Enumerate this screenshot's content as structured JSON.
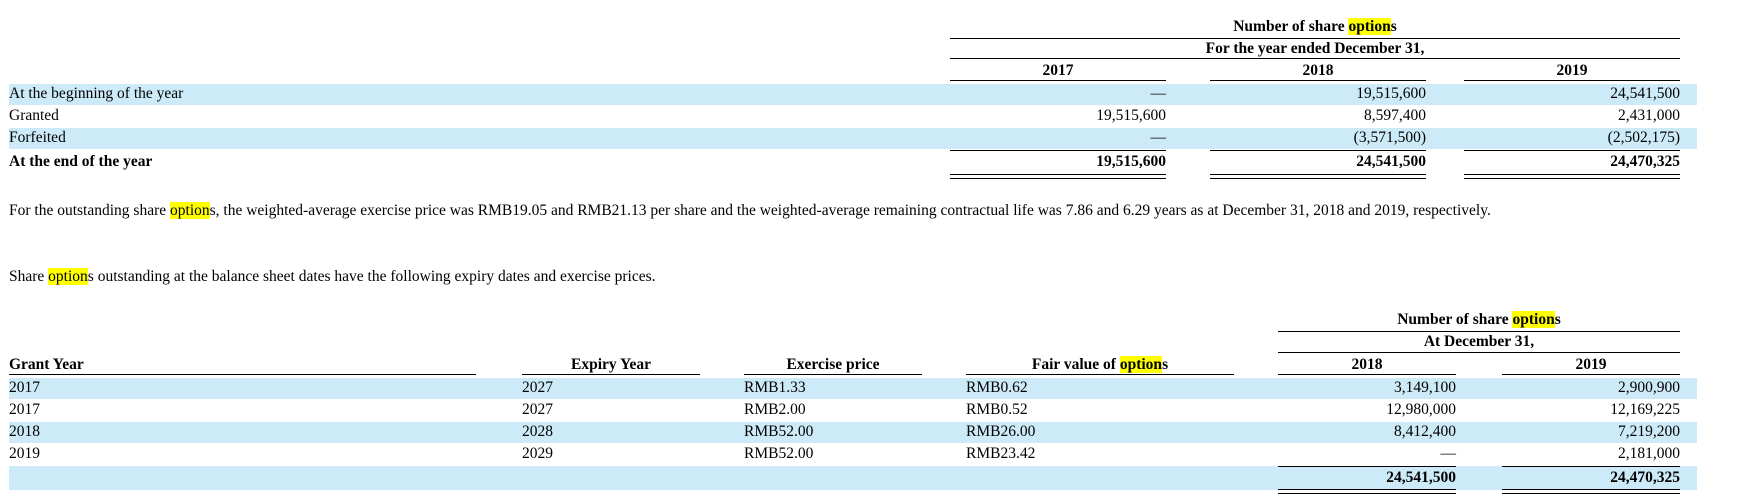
{
  "table1": {
    "title_pre": "Number of share ",
    "title_hl": "option",
    "title_post": "s",
    "subtitle": "For the year ended December 31,",
    "years": [
      "2017",
      "2018",
      "2019"
    ],
    "rows": [
      {
        "label": "At the beginning of the year",
        "values": [
          "—",
          "19,515,600",
          "24,541,500"
        ]
      },
      {
        "label": "Granted",
        "values": [
          "19,515,600",
          "8,597,400",
          "2,431,000"
        ]
      },
      {
        "label": "Forfeited",
        "values": [
          "—",
          "(3,571,500)",
          "(2,502,175)"
        ]
      },
      {
        "label": "At the end of the year",
        "values": [
          "19,515,600",
          "24,541,500",
          "24,470,325"
        ]
      }
    ]
  },
  "paragraph1": {
    "pre": "For the outstanding share ",
    "hl": "option",
    "post": "s, the weighted-average exercise price was RMB19.05 and RMB21.13 per share and the weighted-average remaining contractual life was 7.86 and 6.29 years as at December 31, 2018 and 2019, respectively."
  },
  "paragraph2": {
    "pre": "Share ",
    "hl": "option",
    "post": "s outstanding at the balance sheet dates have the following expiry dates and exercise prices."
  },
  "table2": {
    "title_pre": "Number of share ",
    "title_hl": "option",
    "title_post": "s",
    "subtitle": "At December 31,",
    "col_grant": "Grant Year",
    "col_expiry": "Expiry Year",
    "col_price": "Exercise price",
    "col_fair_pre": "Fair value of ",
    "col_fair_hl": "option",
    "col_fair_post": "s",
    "years": [
      "2018",
      "2019"
    ],
    "rows": [
      {
        "grant": "2017",
        "expiry": "2027",
        "price": "RMB1.33",
        "fair": "RMB0.62",
        "v2018": "3,149,100",
        "v2019": "2,900,900"
      },
      {
        "grant": "2017",
        "expiry": "2027",
        "price": "RMB2.00",
        "fair": "RMB0.52",
        "v2018": "12,980,000",
        "v2019": "12,169,225"
      },
      {
        "grant": "2018",
        "expiry": "2028",
        "price": "RMB52.00",
        "fair": "RMB26.00",
        "v2018": "8,412,400",
        "v2019": "7,219,200"
      },
      {
        "grant": "2019",
        "expiry": "2029",
        "price": "RMB52.00",
        "fair": "RMB23.42",
        "v2018": "—",
        "v2019": "2,181,000"
      }
    ],
    "total_2018": "24,541,500",
    "total_2019": "24,470,325"
  },
  "colors": {
    "band": "#cdeaf8",
    "highlight": "#ffff00"
  }
}
